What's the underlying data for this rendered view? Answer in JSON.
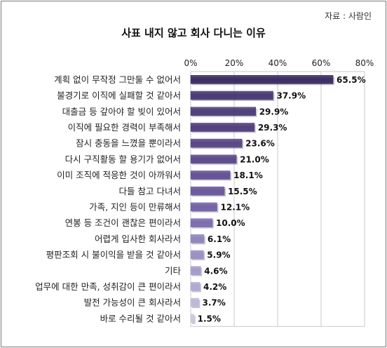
{
  "source": "자료 : 사람인",
  "chart_data": {
    "type": "bar",
    "orientation": "horizontal",
    "title": "사표 내지 않고 회사 다니는 이유",
    "categories": [
      "계획 없이 무작정 그만둘 수 없어서",
      "불경기로 이직에 실패할 것 같아서",
      "대출금 등 갚아야 할 빚이 있어서",
      "이직에 필요한 경력이 부족해서",
      "잠시 충동을 느꼈을 뿐이라서",
      "다시 구직활동 할 용기가 없어서",
      "이미 조직에 적응한 것이 아까워서",
      "다들 참고 다녀서",
      "가족, 지인 등이 만류해서",
      "연봉 등 조건이 괜찮은 편이라서",
      "어렵게 입사한 회사라서",
      "평판조회 시 불이익을 받을 것 같아서",
      "기타",
      "업무에 대한 만족, 성취감이 큰 편이라서",
      "발전 가능성이 큰 회사라서",
      "바로 수리될 것 같아서"
    ],
    "values": [
      65.5,
      37.9,
      29.9,
      29.3,
      23.6,
      21.0,
      18.1,
      15.5,
      12.1,
      10.0,
      6.1,
      5.9,
      4.6,
      4.2,
      3.7,
      1.5
    ],
    "value_labels": [
      "65.5%",
      "37.9%",
      "29.9%",
      "29.3%",
      "23.6%",
      "21.0%",
      "18.1%",
      "15.5%",
      "12.1%",
      "10.0%",
      "6.1%",
      "5.9%",
      "4.6%",
      "4.2%",
      "3.7%",
      "1.5%"
    ],
    "xlim": [
      0,
      80
    ],
    "ticks": [
      0,
      20,
      40,
      60,
      80
    ],
    "tick_labels": [
      "0%",
      "20%",
      "40%",
      "60%",
      "80%"
    ],
    "axis_position": "top",
    "grid": true,
    "bar_colors": [
      "#3c2e63",
      "#4a3b74",
      "#4e3f79",
      "#533f7d",
      "#5a4787",
      "#5e4b8c",
      "#655296",
      "#6b599c",
      "#7463a5",
      "#7d6dae",
      "#9186bb",
      "#9b90c3",
      "#a69cca",
      "#b2a9d2",
      "#bfb8da",
      "#ccc6e3"
    ]
  }
}
